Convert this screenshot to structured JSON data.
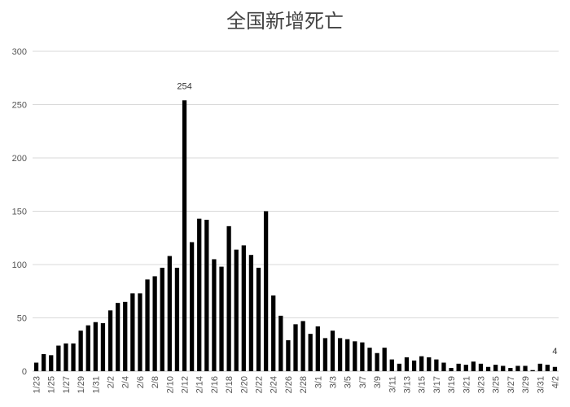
{
  "chart_data": {
    "type": "bar",
    "title": "全国新增死亡",
    "xlabel": "",
    "ylabel": "",
    "ylim": [
      0,
      300
    ],
    "yticks": [
      0,
      50,
      100,
      150,
      200,
      250,
      300
    ],
    "grid": true,
    "legend": "none",
    "bar_color": "#000000",
    "categories": [
      "1/23",
      "1/24",
      "1/25",
      "1/26",
      "1/27",
      "1/28",
      "1/29",
      "1/30",
      "1/31",
      "2/1",
      "2/2",
      "2/3",
      "2/4",
      "2/5",
      "2/6",
      "2/7",
      "2/8",
      "2/9",
      "2/10",
      "2/11",
      "2/12",
      "2/13",
      "2/14",
      "2/15",
      "2/16",
      "2/17",
      "2/18",
      "2/19",
      "2/20",
      "2/21",
      "2/22",
      "2/23",
      "2/24",
      "2/25",
      "2/26",
      "2/27",
      "2/28",
      "2/29",
      "3/1",
      "3/2",
      "3/3",
      "3/4",
      "3/5",
      "3/6",
      "3/7",
      "3/8",
      "3/9",
      "3/10",
      "3/11",
      "3/12",
      "3/13",
      "3/14",
      "3/15",
      "3/16",
      "3/17",
      "3/18",
      "3/19",
      "3/20",
      "3/21",
      "3/22",
      "3/23",
      "3/24",
      "3/25",
      "3/26",
      "3/27",
      "3/28",
      "3/29",
      "3/30",
      "3/31",
      "4/1",
      "4/2"
    ],
    "shown_tick_labels": [
      "1/23",
      "1/25",
      "1/27",
      "1/29",
      "1/31",
      "2/2",
      "2/4",
      "2/6",
      "2/8",
      "2/10",
      "2/12",
      "2/14",
      "2/16",
      "2/18",
      "2/20",
      "2/22",
      "2/24",
      "2/26",
      "2/28",
      "3/1",
      "3/3",
      "3/5",
      "3/7",
      "3/9",
      "3/11",
      "3/13",
      "3/15",
      "3/17",
      "3/19",
      "3/21",
      "3/23",
      "3/25",
      "3/27",
      "3/29",
      "3/31",
      "4/2"
    ],
    "values": [
      8,
      16,
      15,
      24,
      26,
      26,
      38,
      43,
      46,
      45,
      57,
      64,
      65,
      73,
      73,
      86,
      89,
      97,
      108,
      97,
      254,
      121,
      143,
      142,
      105,
      98,
      136,
      114,
      118,
      109,
      97,
      150,
      71,
      52,
      29,
      44,
      47,
      35,
      42,
      31,
      38,
      31,
      30,
      28,
      27,
      22,
      17,
      22,
      11,
      7,
      13,
      10,
      14,
      13,
      11,
      8,
      3,
      7,
      6,
      9,
      7,
      4,
      6,
      5,
      3,
      5,
      5,
      1,
      7,
      6,
      4
    ],
    "data_labels": [
      {
        "category": "2/12",
        "text": "254"
      },
      {
        "category": "4/2",
        "text": "4"
      }
    ]
  }
}
